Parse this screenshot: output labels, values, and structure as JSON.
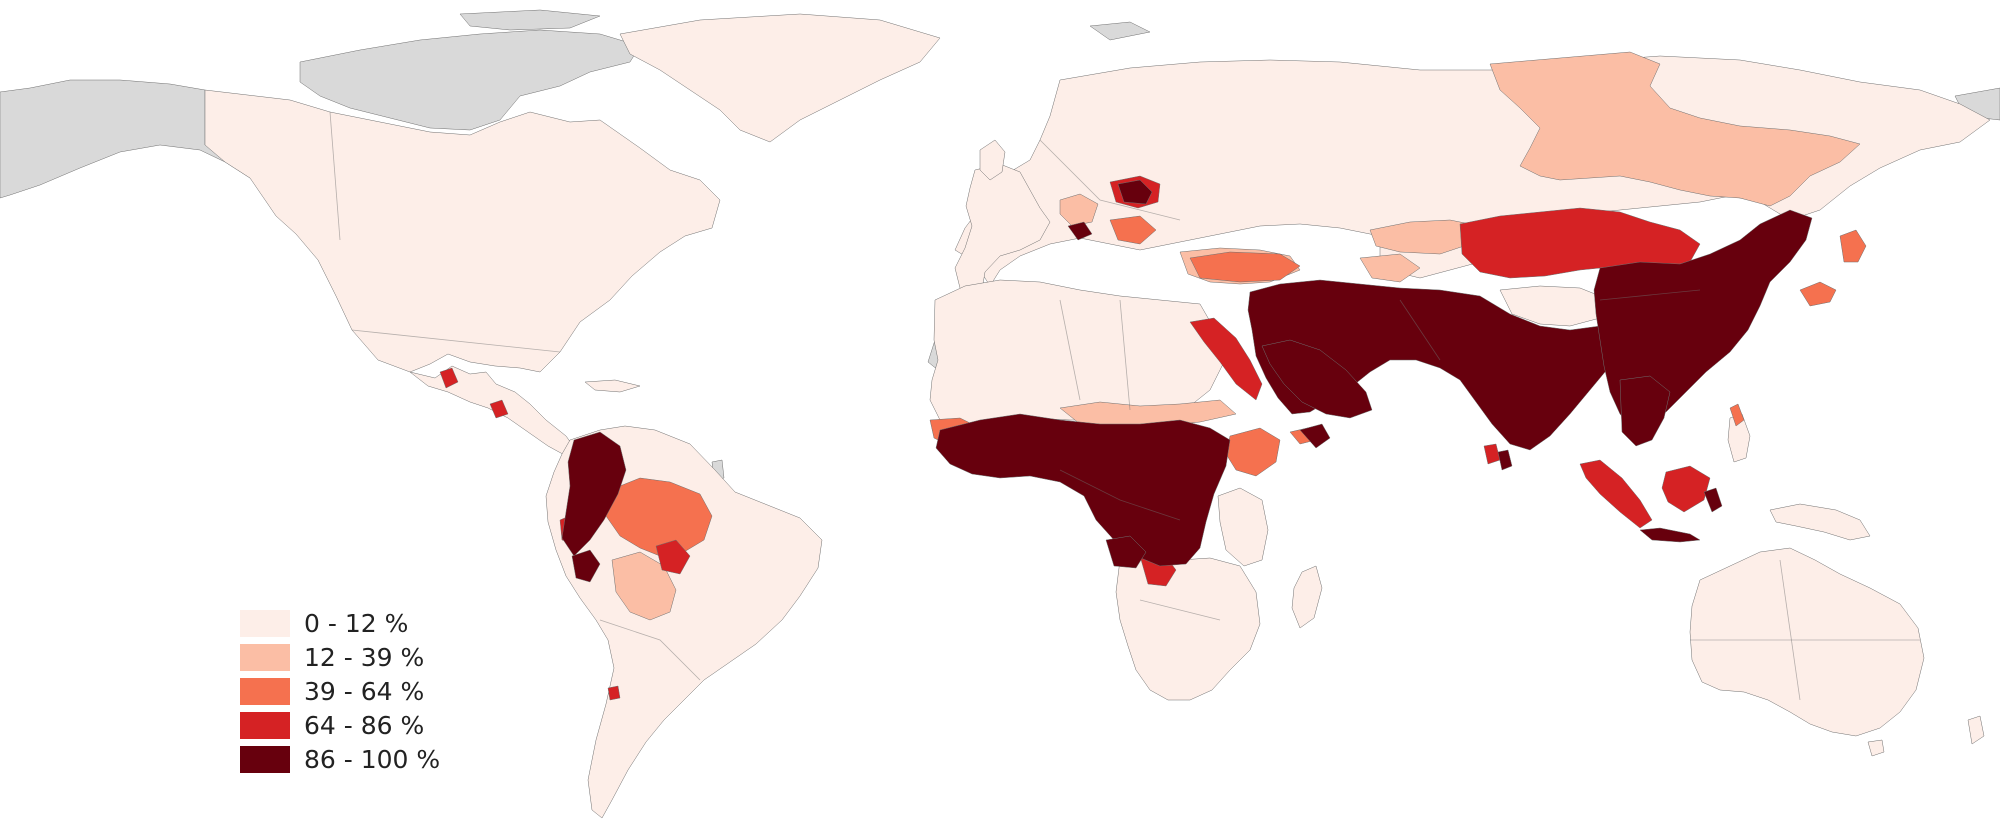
{
  "colors": {
    "background": "#ffffff",
    "no_data": "#d9d9d9",
    "border": "#6f6f6f"
  },
  "legend": {
    "items": [
      {
        "label": "0 - 12 %",
        "color": "#fdeee8"
      },
      {
        "label": "12 - 39 %",
        "color": "#fbbea5"
      },
      {
        "label": "39 - 64 %",
        "color": "#f5714f"
      },
      {
        "label": "64 - 86 %",
        "color": "#d52224"
      },
      {
        "label": "86 - 100 %",
        "color": "#67000d"
      }
    ]
  }
}
